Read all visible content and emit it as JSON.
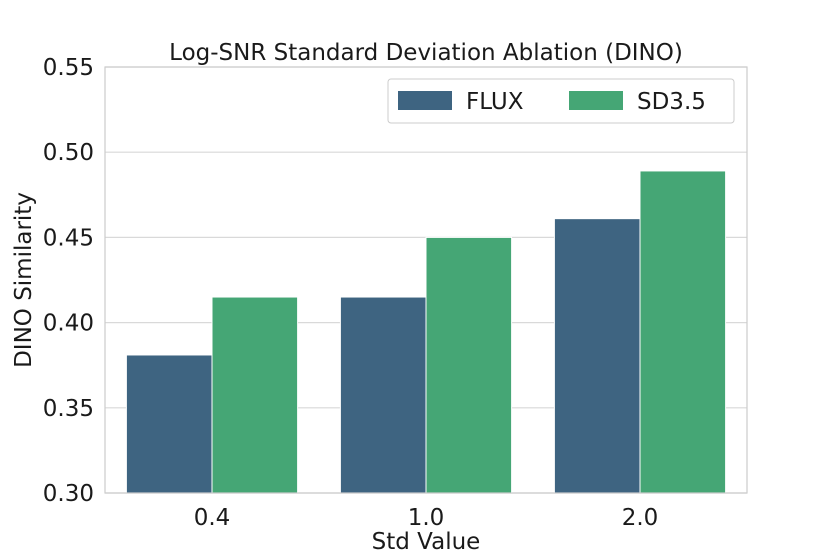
{
  "chart_data": {
    "type": "bar",
    "title": "Log-SNR Standard Deviation Ablation (DINO)",
    "xlabel": "Std Value",
    "ylabel": "DINO Similarity",
    "categories": [
      "0.4",
      "1.0",
      "2.0"
    ],
    "series": [
      {
        "name": "FLUX",
        "color": "#3e6481",
        "values": [
          0.381,
          0.415,
          0.461
        ]
      },
      {
        "name": "SD3.5",
        "color": "#45a675",
        "values": [
          0.415,
          0.45,
          0.489
        ]
      }
    ],
    "ylim": [
      0.3,
      0.55
    ],
    "yticks": [
      "0.30",
      "0.35",
      "0.40",
      "0.45",
      "0.50",
      "0.55"
    ],
    "grid": true,
    "legend_position": "top-right"
  }
}
